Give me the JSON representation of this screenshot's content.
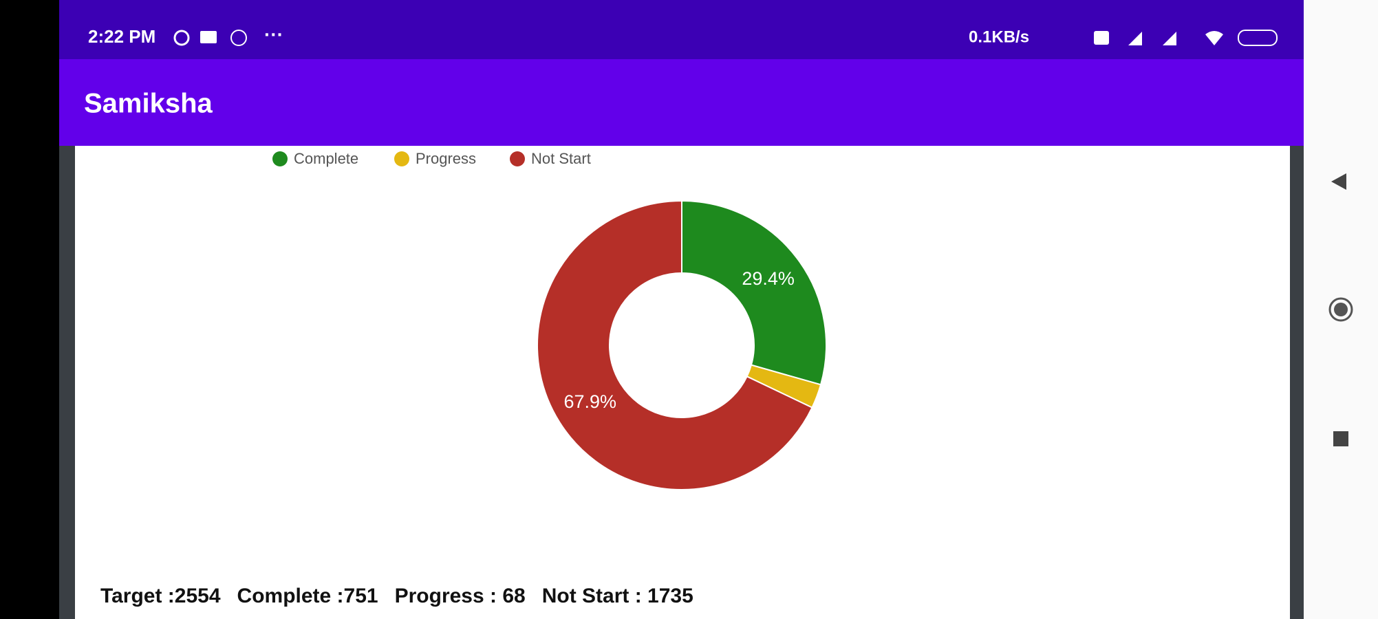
{
  "status_bar": {
    "time": "2:22 PM",
    "more": "···",
    "speed": "0.1KB/s"
  },
  "app_bar": {
    "title": "Samiksha"
  },
  "chart_data": {
    "type": "pie",
    "categories": [
      "Complete",
      "Progress",
      "Not Start"
    ],
    "values": [
      29.4,
      2.7,
      67.9
    ],
    "value_labels": [
      "29.4%",
      null,
      "67.9%"
    ],
    "colors": [
      "#1e8a1e",
      "#e4b812",
      "#b52f28"
    ],
    "hole": 0.5,
    "legend": "top"
  },
  "summary": [
    "Target :2554",
    "Complete :751",
    "Progress : 68",
    "Not Start : 1735"
  ]
}
